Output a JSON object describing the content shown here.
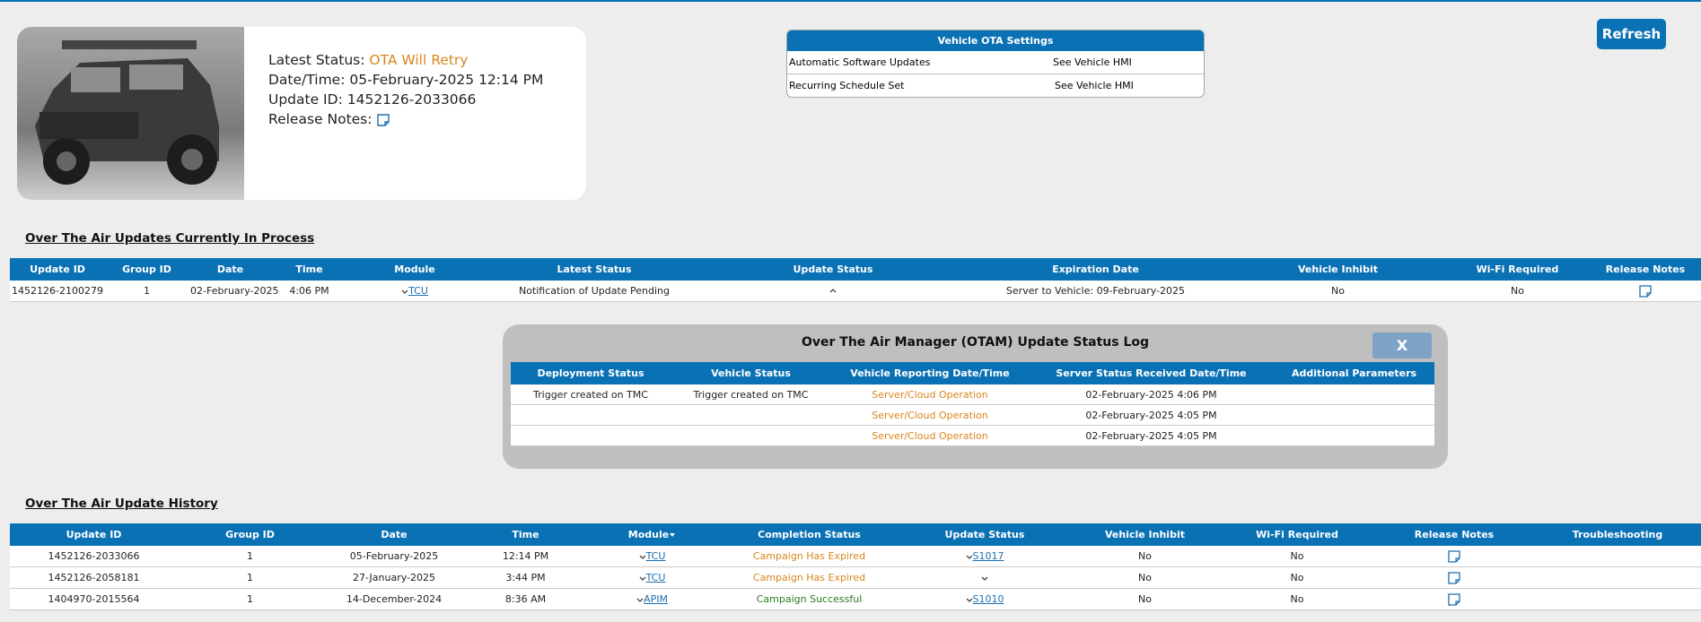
{
  "header": {
    "status_label": "Latest Status:",
    "status_value": "OTA Will Retry",
    "datetime_label": "Date/Time:",
    "datetime_value": "05-February-2025 12:14 PM",
    "update_id_label": "Update ID:",
    "update_id_value": "1452126-2033066",
    "release_notes_label": "Release Notes:"
  },
  "settings": {
    "title": "Vehicle OTA Settings",
    "rows": [
      [
        "Automatic Software Updates",
        "See Vehicle HMI"
      ],
      [
        "Recurring Schedule Set",
        "See Vehicle HMI"
      ]
    ]
  },
  "refresh": "Refresh",
  "in_process": {
    "title": "Over The Air Updates Currently In Process",
    "columns": [
      "Update ID",
      "Group ID",
      "Date",
      "Time",
      "Module",
      "Latest Status",
      "Update Status",
      "Expiration Date",
      "Vehicle Inhibit",
      "Wi-Fi Required",
      "Release Notes"
    ],
    "rows": [
      [
        "1452126-2100279",
        "1",
        "02-February-2025",
        "4:06 PM",
        "TCU",
        "Notification of Update Pending",
        null,
        "Server to Vehicle: 09-February-2025",
        "No",
        "No",
        null
      ]
    ]
  },
  "status_log": {
    "title": "Over The Air Manager (OTAM) Update Status Log",
    "close": "X",
    "columns": [
      "Deployment Status",
      "Vehicle Status",
      "Vehicle Reporting Date/Time",
      "Server Status Received Date/Time",
      "Additional Parameters"
    ],
    "rows": [
      [
        "Trigger created on TMC",
        "Trigger created on TMC",
        "Server/Cloud Operation",
        "02-February-2025 4:06 PM",
        null
      ],
      [
        null,
        null,
        "Server/Cloud Operation",
        "02-February-2025 4:05 PM",
        null
      ],
      [
        null,
        null,
        "Server/Cloud Operation",
        "02-February-2025 4:05 PM",
        null
      ]
    ]
  },
  "history": {
    "title": "Over The Air Update History",
    "columns": [
      "Update ID",
      "Group ID",
      "Date",
      "Time",
      "Module",
      "Completion Status",
      "Update Status",
      "Vehicle Inhibit",
      "Wi-Fi Required",
      "Release Notes",
      "Troubleshooting"
    ],
    "rows": [
      [
        "1452126-2033066",
        "1",
        "05-February-2025",
        "12:14 PM",
        "TCU",
        "Campaign Has Expired",
        "S1017",
        "No",
        "No",
        null,
        null
      ],
      [
        "1452126-2058181",
        "1",
        "27-January-2025",
        "3:44 PM",
        "TCU",
        "Campaign Has Expired",
        null,
        "No",
        "No",
        null,
        null
      ],
      [
        "1404970-2015564",
        "1",
        "14-December-2024",
        "8:36 AM",
        "APIM",
        "Campaign Successful",
        "S1010",
        "No",
        "No",
        null,
        null
      ]
    ]
  }
}
